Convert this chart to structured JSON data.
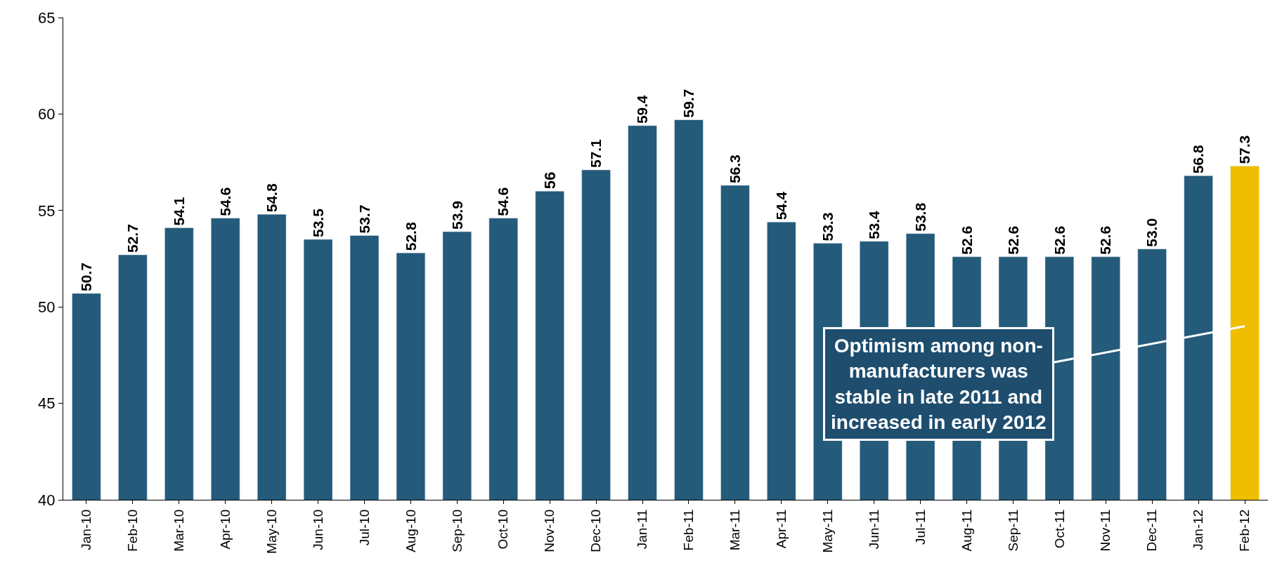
{
  "chart_data": {
    "type": "bar",
    "categories": [
      "Jan-10",
      "Feb-10",
      "Mar-10",
      "Apr-10",
      "May-10",
      "Jun-10",
      "Jul-10",
      "Aug-10",
      "Sep-10",
      "Oct-10",
      "Nov-10",
      "Dec-10",
      "Jan-11",
      "Feb-11",
      "Mar-11",
      "Apr-11",
      "May-11",
      "Jun-11",
      "Jul-11",
      "Aug-11",
      "Sep-11",
      "Oct-11",
      "Nov-11",
      "Dec-11",
      "Jan-12",
      "Feb-12"
    ],
    "values": [
      50.7,
      52.7,
      54.1,
      54.6,
      54.8,
      53.5,
      53.7,
      52.8,
      53.9,
      54.6,
      56,
      57.1,
      59.4,
      59.7,
      56.3,
      54.4,
      53.3,
      53.4,
      53.8,
      52.6,
      52.6,
      52.6,
      52.6,
      53.0,
      56.8,
      57.3
    ],
    "value_labels": [
      "50.7",
      "52.7",
      "54.1",
      "54.6",
      "54.8",
      "53.5",
      "53.7",
      "52.8",
      "53.9",
      "54.6",
      "56",
      "57.1",
      "59.4",
      "59.7",
      "56.3",
      "54.4",
      "53.3",
      "53.4",
      "53.8",
      "52.6",
      "52.6",
      "52.6",
      "52.6",
      "53.0",
      "56.8",
      "57.3"
    ],
    "colors": [
      "#245a7a",
      "#245a7a",
      "#245a7a",
      "#245a7a",
      "#245a7a",
      "#245a7a",
      "#245a7a",
      "#245a7a",
      "#245a7a",
      "#245a7a",
      "#245a7a",
      "#245a7a",
      "#245a7a",
      "#245a7a",
      "#245a7a",
      "#245a7a",
      "#245a7a",
      "#245a7a",
      "#245a7a",
      "#245a7a",
      "#245a7a",
      "#245a7a",
      "#245a7a",
      "#245a7a",
      "#245a7a",
      "#f0be00"
    ],
    "ylim": [
      40,
      65
    ],
    "yticks": [
      40,
      45,
      50,
      55,
      60,
      65
    ],
    "annotations": [
      "Optimism among non-\nmanufacturers was\nstable in late 2011 and\nincreased in early 2012"
    ]
  }
}
